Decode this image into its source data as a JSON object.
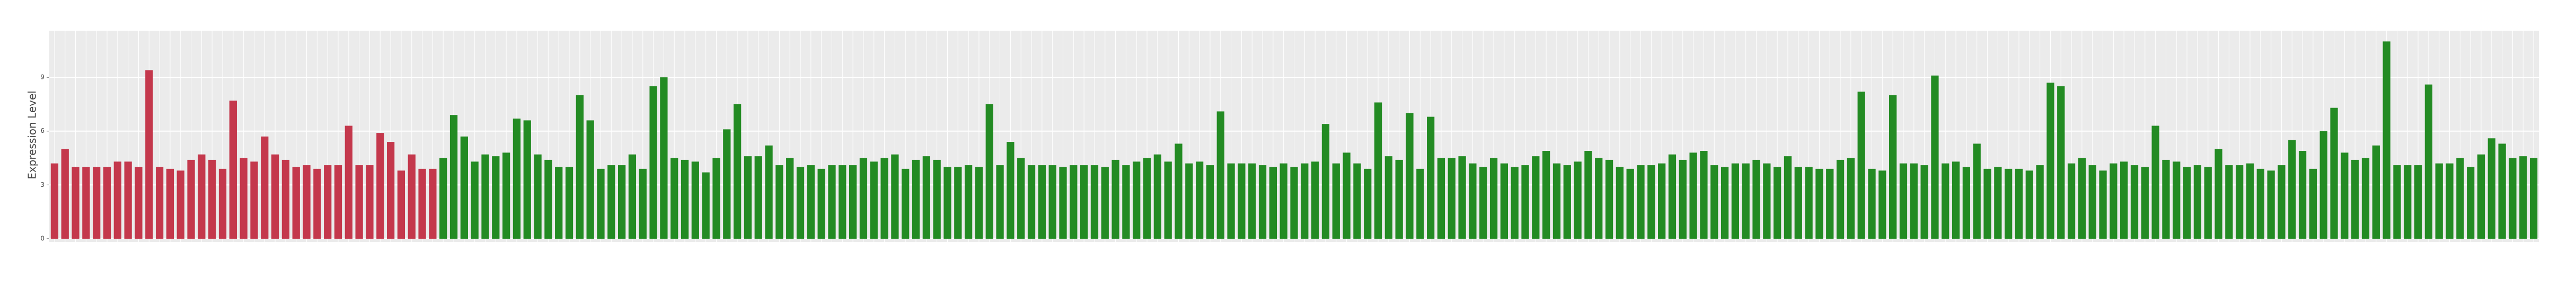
{
  "chart_data": {
    "type": "bar",
    "y_label": "Expression Level",
    "values": [
      4.2,
      5.0,
      4.0,
      4.0,
      4.0,
      4.0,
      4.3,
      4.3,
      4.0,
      9.4,
      4.0,
      3.9,
      3.8,
      4.4,
      4.7,
      4.4,
      3.9,
      7.7,
      4.5,
      4.3,
      5.7,
      4.7,
      4.4,
      4.0,
      4.1,
      3.9,
      4.1,
      4.1,
      6.3,
      4.1,
      4.1,
      5.9,
      5.4,
      3.8,
      4.7,
      3.9,
      3.9,
      4.5,
      6.9,
      5.7,
      4.3,
      4.7,
      4.6,
      4.8,
      6.7,
      6.6,
      4.7,
      4.4,
      4.0,
      4.0,
      8.0,
      6.6,
      3.9,
      4.1,
      4.1,
      4.7,
      3.9,
      8.5,
      9.0,
      4.5,
      4.4,
      4.3,
      3.7,
      4.5,
      6.1,
      7.5,
      4.6,
      4.6,
      5.2,
      4.1,
      4.5,
      4.0,
      4.1,
      3.9,
      4.1,
      4.1,
      4.1,
      4.5,
      4.3,
      4.5,
      4.7,
      3.9,
      4.4,
      4.6,
      4.4,
      4.0,
      4.0,
      4.1,
      4.0,
      7.5,
      4.1,
      5.4,
      4.5,
      4.1,
      4.1,
      4.1,
      4.0,
      4.1,
      4.1,
      4.1,
      4.0,
      4.4,
      4.1,
      4.3,
      4.5,
      4.7,
      4.3,
      5.3,
      4.2,
      4.3,
      4.1,
      7.1,
      4.2,
      4.2,
      4.2,
      4.1,
      4.0,
      4.2,
      4.0,
      4.2,
      4.3,
      6.4,
      4.2,
      4.8,
      4.2,
      3.9,
      7.6,
      4.6,
      4.4,
      7.0,
      3.9,
      6.8,
      4.5,
      4.5,
      4.6,
      4.2,
      4.0,
      4.5,
      4.2,
      4.0,
      4.1,
      4.6,
      4.9,
      4.2,
      4.1,
      4.3,
      4.9,
      4.5,
      4.4,
      4.0,
      3.9,
      4.1,
      4.1,
      4.2,
      4.7,
      4.4,
      4.8,
      4.9,
      4.1,
      4.0,
      4.2,
      4.2,
      4.4,
      4.2,
      4.0,
      4.6,
      4.0,
      4.0,
      3.9,
      3.9,
      4.4,
      4.5,
      8.2,
      3.9,
      3.8,
      8.0,
      4.2,
      4.2,
      4.1,
      9.1,
      4.2,
      4.3,
      4.0,
      5.3,
      3.9,
      4.0,
      3.9,
      3.9,
      3.8,
      4.1,
      8.7,
      8.5,
      4.2,
      4.5,
      4.1,
      3.8,
      4.2,
      4.3,
      4.1,
      4.0,
      6.3,
      4.4,
      4.3,
      4.0,
      4.1,
      4.0,
      5.0,
      4.1,
      4.1,
      4.2,
      3.9,
      3.8,
      4.1,
      5.5,
      4.9,
      3.9,
      6.0,
      7.3,
      4.8,
      4.4,
      4.5,
      5.2,
      11.0,
      4.1,
      4.1,
      4.1,
      8.6,
      4.2,
      4.2,
      4.5,
      4.0,
      4.7,
      5.6,
      5.3,
      4.5,
      4.6,
      4.5
    ],
    "colors": [
      "#c4384c",
      "#c4384c",
      "#c4384c",
      "#c4384c",
      "#c4384c",
      "#c4384c",
      "#c4384c",
      "#c4384c",
      "#c4384c",
      "#c4384c",
      "#c4384c",
      "#c4384c",
      "#c4384c",
      "#c4384c",
      "#c4384c",
      "#c4384c",
      "#c4384c",
      "#c4384c",
      "#c4384c",
      "#c4384c",
      "#c4384c",
      "#c4384c",
      "#c4384c",
      "#c4384c",
      "#c4384c",
      "#c4384c",
      "#c4384c",
      "#c4384c",
      "#c4384c",
      "#c4384c",
      "#c4384c",
      "#c4384c",
      "#c4384c",
      "#c4384c",
      "#c4384c",
      "#c4384c",
      "#c4384c",
      "#238b23",
      "#238b23",
      "#238b23",
      "#238b23",
      "#238b23",
      "#238b23",
      "#238b23",
      "#238b23",
      "#238b23",
      "#238b23",
      "#238b23",
      "#238b23",
      "#238b23",
      "#238b23",
      "#238b23",
      "#238b23",
      "#238b23",
      "#238b23",
      "#238b23",
      "#238b23",
      "#238b23",
      "#238b23",
      "#238b23",
      "#238b23",
      "#238b23",
      "#238b23",
      "#238b23",
      "#238b23",
      "#238b23",
      "#238b23",
      "#238b23",
      "#238b23",
      "#238b23",
      "#238b23",
      "#238b23",
      "#238b23",
      "#238b23",
      "#238b23",
      "#238b23",
      "#238b23",
      "#238b23",
      "#238b23",
      "#238b23",
      "#238b23",
      "#238b23",
      "#238b23",
      "#238b23",
      "#238b23",
      "#238b23",
      "#238b23",
      "#238b23",
      "#238b23",
      "#238b23",
      "#238b23",
      "#238b23",
      "#238b23",
      "#238b23",
      "#238b23",
      "#238b23",
      "#238b23",
      "#238b23",
      "#238b23",
      "#238b23",
      "#238b23",
      "#238b23",
      "#238b23",
      "#238b23",
      "#238b23",
      "#238b23",
      "#238b23",
      "#238b23",
      "#238b23",
      "#238b23",
      "#238b23",
      "#238b23",
      "#238b23",
      "#238b23",
      "#238b23",
      "#238b23",
      "#238b23",
      "#238b23",
      "#238b23",
      "#238b23",
      "#238b23",
      "#238b23",
      "#238b23",
      "#238b23",
      "#238b23",
      "#238b23",
      "#238b23",
      "#238b23",
      "#238b23",
      "#238b23",
      "#238b23",
      "#238b23",
      "#238b23",
      "#238b23",
      "#238b23",
      "#238b23",
      "#238b23",
      "#238b23",
      "#238b23",
      "#238b23",
      "#238b23",
      "#238b23",
      "#238b23",
      "#238b23",
      "#238b23",
      "#238b23",
      "#238b23",
      "#238b23",
      "#238b23",
      "#238b23",
      "#238b23",
      "#238b23",
      "#238b23",
      "#238b23",
      "#238b23",
      "#238b23",
      "#238b23",
      "#238b23",
      "#238b23",
      "#238b23",
      "#238b23",
      "#238b23",
      "#238b23",
      "#238b23",
      "#238b23",
      "#238b23",
      "#238b23",
      "#238b23",
      "#238b23",
      "#238b23",
      "#238b23",
      "#238b23",
      "#238b23",
      "#238b23",
      "#238b23",
      "#238b23",
      "#238b23",
      "#238b23",
      "#238b23",
      "#238b23",
      "#238b23",
      "#238b23",
      "#238b23",
      "#238b23",
      "#238b23",
      "#238b23",
      "#238b23",
      "#238b23",
      "#238b23",
      "#238b23",
      "#238b23",
      "#238b23",
      "#238b23",
      "#238b23",
      "#238b23",
      "#238b23",
      "#238b23",
      "#238b23",
      "#238b23",
      "#238b23",
      "#238b23",
      "#238b23",
      "#238b23",
      "#238b23",
      "#238b23",
      "#238b23",
      "#238b23",
      "#238b23",
      "#238b23",
      "#238b23",
      "#238b23",
      "#238b23",
      "#238b23",
      "#238b23",
      "#238b23",
      "#238b23",
      "#238b23",
      "#238b23",
      "#238b23",
      "#238b23",
      "#238b23",
      "#238b23",
      "#238b23",
      "#238b23",
      "#238b23",
      "#238b23",
      "#238b23",
      "#238b23",
      "#238b23",
      "#238b23",
      "#238b23",
      "#238b23",
      "#238b23",
      "#238b23",
      "#238b23",
      "#238b23",
      "#238b23",
      "#238b23",
      "#238b23",
      "#238b23",
      "#238b23",
      "#238b23",
      "#238b23",
      "#238b23",
      "#238b23",
      "#238b23",
      "#238b23",
      "#238b23"
    ],
    "ylim": [
      0,
      11.6
    ],
    "yticks": [
      0,
      3,
      6,
      9
    ],
    "grid": true,
    "background": "#ebebeb"
  }
}
